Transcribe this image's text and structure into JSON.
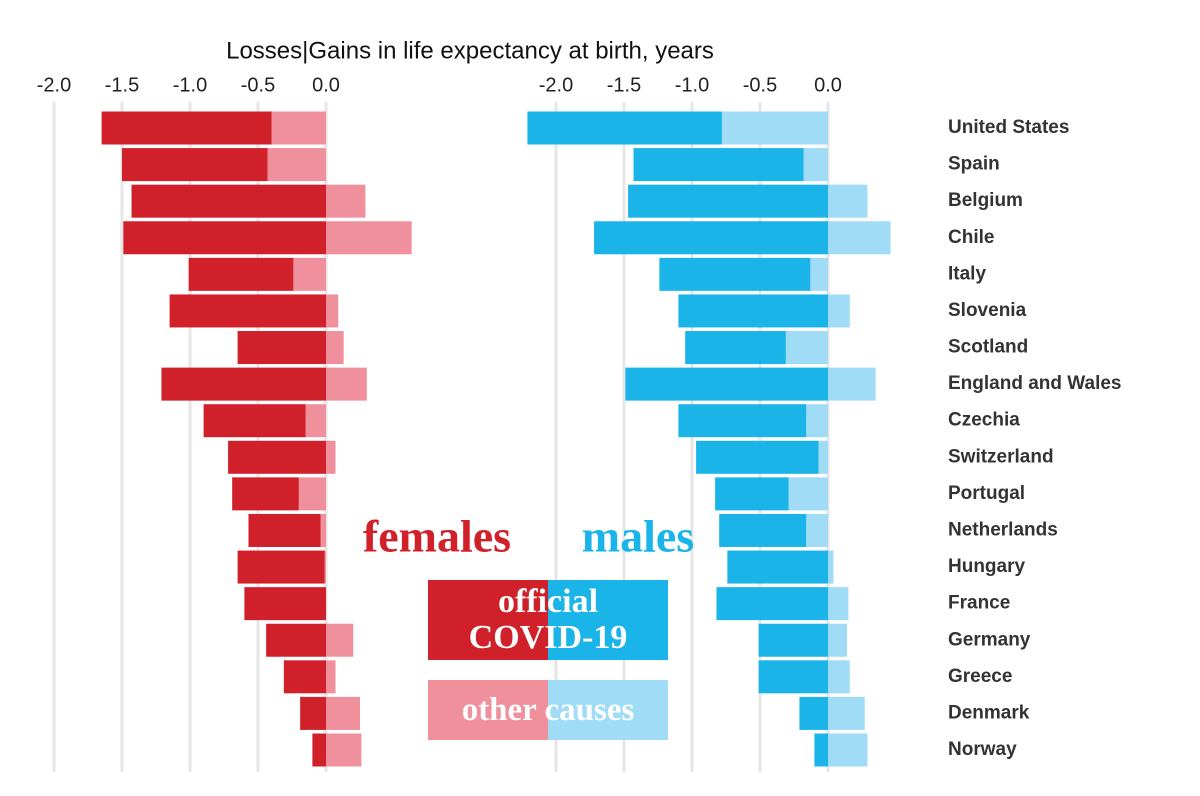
{
  "chart_data": {
    "type": "bar",
    "orientation": "horizontal",
    "title": "Losses|Gains in life expectancy at birth, years",
    "categories": [
      "United States",
      "Spain",
      "Belgium",
      "Chile",
      "Italy",
      "Slovenia",
      "Scotland",
      "England and Wales",
      "Czechia",
      "Switzerland",
      "Portugal",
      "Netherlands",
      "Hungary",
      "France",
      "Germany",
      "Greece",
      "Denmark",
      "Norway"
    ],
    "series_names": [
      "official COVID-19",
      "other causes"
    ],
    "grid": true,
    "panels": [
      {
        "name": "females",
        "xlim": [
          -2.1,
          0.7
        ],
        "xticks": [
          {
            "value": -2,
            "label": "-2.0"
          },
          {
            "value": -1.5,
            "label": "-1.5"
          },
          {
            "value": -1,
            "label": "-1.0"
          },
          {
            "value": -0.5,
            "label": "-0.5"
          },
          {
            "value": 0,
            "label": "0.0"
          }
        ],
        "color": "#d0202a",
        "series": [
          {
            "color": "#d0202a",
            "values": [
              -1.25,
              -1.07,
              -1.43,
              -1.49,
              -0.77,
              -1.15,
              -0.65,
              -1.21,
              -0.75,
              -0.72,
              -0.49,
              -0.53,
              -0.64,
              -0.6,
              -0.44,
              -0.31,
              -0.19,
              -0.1
            ]
          },
          {
            "color": "#f0909c",
            "values": [
              -0.4,
              -0.43,
              0.29,
              0.63,
              -0.24,
              0.09,
              0.13,
              0.3,
              -0.15,
              0.07,
              -0.2,
              -0.04,
              -0.01,
              0,
              0.2,
              0.07,
              0.25,
              0.26
            ]
          }
        ]
      },
      {
        "name": "males",
        "xlim": [
          -2.3,
          0.5
        ],
        "xticks": [
          {
            "value": -2,
            "label": "-2.0"
          },
          {
            "value": -1.5,
            "label": "-1.5"
          },
          {
            "value": -1,
            "label": "-1.0"
          },
          {
            "value": -0.5,
            "label": "-0.5"
          },
          {
            "value": 0,
            "label": "0.0"
          }
        ],
        "color": "#1ab4e8",
        "series": [
          {
            "color": "#1ab4e8",
            "values": [
              -1.43,
              -1.25,
              -1.47,
              -1.72,
              -1.11,
              -1.1,
              -0.74,
              -1.49,
              -0.94,
              -0.9,
              -0.54,
              -0.64,
              -0.74,
              -0.82,
              -0.51,
              -0.51,
              -0.21,
              -0.1
            ]
          },
          {
            "color": "#a0dcf5",
            "values": [
              -0.78,
              -0.18,
              0.29,
              0.46,
              -0.13,
              0.16,
              -0.31,
              0.35,
              -0.16,
              -0.07,
              -0.29,
              -0.16,
              0.04,
              0.15,
              0.14,
              0.16,
              0.27,
              0.29
            ]
          }
        ]
      }
    ]
  }
}
